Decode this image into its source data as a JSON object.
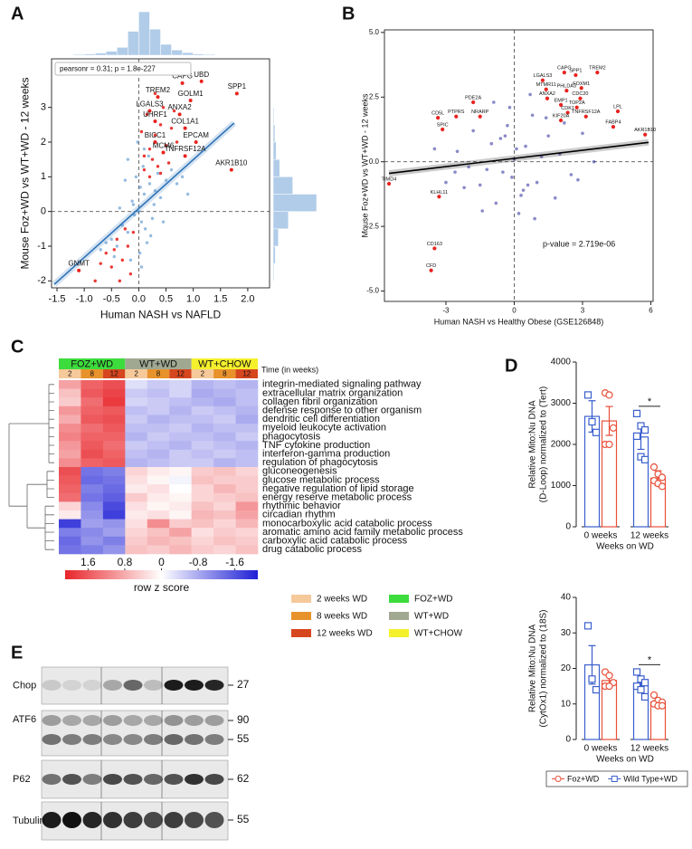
{
  "chart_data": [
    {
      "type": "scatter",
      "panel": "A",
      "xlabel": "Human NASH vs NAFLD",
      "ylabel": "Mouse Foz+WD vs WT+WD - 12 weeks",
      "annotation": "pearsonr = 0.31; p = 1.8e-227",
      "xlim": [
        -1.6,
        2.4
      ],
      "ylim": [
        -2.2,
        4.4
      ],
      "xticks": [
        -1.5,
        {
          "value": -1,
          "label": "-1.0"
        },
        -0.5,
        {
          "value": 0,
          "label": "0.0"
        },
        0.5,
        {
          "value": 1,
          "label": "1.0"
        },
        1.5,
        {
          "value": 2,
          "label": "2.0"
        }
      ],
      "yticks": [
        -2,
        -1,
        0,
        1,
        2,
        3
      ],
      "zero_lines": true,
      "series": [
        {
          "color": "#3d85c6",
          "x": [
            -0.1,
            0.05,
            0.1,
            -0.2,
            0.2,
            0.0,
            -0.05,
            0.15,
            -0.3,
            0.3,
            0.02,
            -0.12,
            0.08,
            0.25,
            -0.25,
            0.4,
            -0.4,
            0.12,
            -0.08,
            0.18,
            0.5,
            -0.5,
            0.03,
            -0.15,
            0.35,
            0.6,
            -0.6,
            0.22,
            -0.35,
            0.45,
            0.7,
            -0.2,
            0.1,
            0.05,
            -0.02,
            0.28,
            -0.45,
            0.8,
            0.9,
            -0.7
          ],
          "y": [
            0.2,
            -0.3,
            0.5,
            -0.6,
            0.8,
            0.0,
            1.0,
            -0.9,
            -0.4,
            0.6,
            -1.2,
            0.3,
            1.3,
            -0.2,
            0.9,
            0.4,
            -1.0,
            -0.5,
            -0.1,
            1.6,
            0.9,
            -0.8,
            0.7,
            -1.4,
            1.1,
            1.2,
            -0.9,
            -0.7,
            0.1,
            -0.3,
            0.8,
            1.5,
            1.8,
            -1.6,
            2.0,
            0.2,
            -1.3,
            1.0,
            0.5,
            -1.1
          ]
        },
        {
          "color": "#e8231f",
          "x": [
            0.1,
            0.2,
            0.3,
            0.25,
            0.4,
            0.5,
            0.15,
            0.35,
            0.45,
            0.6,
            0.2,
            0.3,
            0.55,
            0.7,
            0.05,
            0.4,
            0.65,
            0.1,
            -0.1,
            -0.2,
            -0.3,
            -0.4,
            -0.5,
            -0.15,
            -0.25,
            -0.6,
            -0.35,
            -0.7,
            -0.45,
            -0.8
          ],
          "y": [
            1.2,
            1.8,
            2.2,
            1.5,
            2.5,
            1.9,
            2.8,
            1.3,
            3.0,
            2.4,
            1.0,
            3.4,
            1.4,
            2.0,
            2.3,
            1.1,
            2.9,
            1.6,
            -0.6,
            -1.0,
            -1.4,
            -0.8,
            -1.6,
            -1.8,
            -0.5,
            -1.2,
            -2.0,
            -1.5,
            -1.1,
            -2.0
          ]
        }
      ],
      "labeled": {
        "color": "#e8231f",
        "labels": [
          "CAPG",
          "UBD",
          "TREM2",
          "GOLM1",
          "SPP1",
          "LGALS3",
          "ANXA2",
          "UHRF1",
          "COL1A1",
          "EPCAM",
          "BICC1",
          "MCM6",
          "TNFRSF12A",
          "AKR1B10",
          "GNMT"
        ],
        "x": [
          0.8,
          1.15,
          0.35,
          0.95,
          1.8,
          0.2,
          0.75,
          0.3,
          0.85,
          1.05,
          0.3,
          0.45,
          0.85,
          1.7,
          -1.1
        ],
        "y": [
          3.7,
          3.75,
          3.3,
          3.2,
          3.4,
          2.9,
          2.8,
          2.6,
          2.4,
          2.0,
          2.0,
          1.7,
          1.6,
          1.2,
          -1.7
        ]
      },
      "fit": {
        "color": "#2d72b8",
        "x": [
          -1.55,
          1.75
        ],
        "y": [
          -2.1,
          2.55
        ]
      },
      "x_hist": {
        "color": "#6fa3d6",
        "bins": [
          -1.6,
          -1.4,
          -1.2,
          -1.0,
          -0.8,
          -0.6,
          -0.4,
          -0.2,
          0.0,
          0.2,
          0.4,
          0.6,
          0.8,
          1.0,
          1.2,
          1.4,
          1.6,
          1.8,
          2.0,
          2.2,
          2.4
        ],
        "counts": [
          1,
          1,
          2,
          3,
          5,
          9,
          18,
          55,
          100,
          60,
          25,
          12,
          6,
          3,
          2,
          1,
          1,
          1,
          0,
          0
        ]
      },
      "y_hist": {
        "color": "#6fa3d6",
        "bins": [
          -2.0,
          -1.5,
          -1.0,
          -0.5,
          0.0,
          0.5,
          1.0,
          1.5,
          2.0,
          2.5,
          3.0,
          3.5,
          4.0
        ],
        "counts": [
          2,
          5,
          12,
          35,
          100,
          45,
          15,
          7,
          4,
          2,
          1,
          1
        ]
      }
    },
    {
      "type": "scatter",
      "panel": "B",
      "xlabel": "Human NASH vs Healthy Obese (GSE126848)",
      "ylabel": "Mouse Foz+WD vs WT+WD - 12 weeks",
      "annotation": "p-value = 2.719e-06",
      "xlim": [
        -5.7,
        6.1
      ],
      "ylim": [
        -5.4,
        5.1
      ],
      "xticks": [
        -3,
        0,
        3,
        6
      ],
      "yticks": [
        {
          "value": 5,
          "label": "5.0"
        },
        2.5,
        {
          "value": 0,
          "label": "0.0"
        },
        -2.5,
        {
          "value": -5,
          "label": "-5.0"
        }
      ],
      "zero_lines": true,
      "series": [
        {
          "color": "#2a2a9a",
          "x": [
            0,
            0.5,
            -0.5,
            1,
            -1,
            1.5,
            -1.5,
            0.3,
            -0.3,
            2,
            -2,
            0.8,
            -0.8,
            2.5,
            -2.5,
            0.2,
            -0.2,
            1.2,
            -1.2,
            3,
            -3,
            0.6,
            -0.6,
            1.8,
            -1.8,
            0.1,
            -0.1,
            2.2,
            -2.2,
            0.9,
            -0.9,
            3.5,
            -3.5,
            1.4,
            -1.4,
            0.4,
            -0.4,
            2.8,
            -2.6,
            0.7
          ],
          "y": [
            0.1,
            0.6,
            -0.4,
            -0.8,
            0.7,
            1.0,
            -0.9,
            -1.3,
            1.4,
            0.3,
            -0.2,
            1.8,
            -1.6,
            -0.5,
            0.4,
            -2.0,
            2.1,
            0.2,
            -0.3,
            1.1,
            -0.8,
            -0.9,
            0.9,
            -1.4,
            1.2,
            0.5,
            -0.6,
            1.5,
            -1.0,
            -2.2,
            2.3,
            0.0,
            0.5,
            1.7,
            -1.9,
            -1.1,
            1.0,
            -0.7,
            -0.4,
            2.6
          ]
        }
      ],
      "labeled": {
        "color": "#e8231f",
        "labels": [
          "PDE2A",
          "NRARP",
          "LGALS3",
          "CAPG",
          "SPP1",
          "TREM2",
          "MTMR11",
          "ANXA2",
          "PHLDA3",
          "FOXM1",
          "CDC20",
          "EMP1",
          "TOP2A",
          "CDK1",
          "KIF20A",
          "TNFRSF12A",
          "LPL",
          "FABP4",
          "AKR1B10",
          "PTPRS",
          "CD5L",
          "SPIC",
          "TIMD4",
          "KLHL11",
          "CD163",
          "CFD"
        ],
        "x": [
          -1.8,
          -1.5,
          1.25,
          2.2,
          2.7,
          3.65,
          1.4,
          1.45,
          2.3,
          2.95,
          2.9,
          2.05,
          2.75,
          2.35,
          2.05,
          3.15,
          4.55,
          4.35,
          5.75,
          -2.55,
          -3.35,
          -3.15,
          -5.5,
          -3.3,
          -3.5,
          -3.65
        ],
        "y": [
          2.3,
          1.75,
          3.15,
          3.45,
          3.35,
          3.45,
          2.8,
          2.45,
          2.75,
          2.85,
          2.45,
          2.2,
          2.1,
          1.9,
          1.6,
          1.75,
          1.95,
          1.35,
          1.05,
          1.75,
          1.7,
          1.25,
          -0.85,
          -1.35,
          -3.35,
          -4.2
        ]
      },
      "fit": {
        "color": "#000000",
        "x": [
          -5.5,
          5.9
        ],
        "y": [
          -0.45,
          0.75
        ]
      }
    },
    {
      "type": "heatmap",
      "panel": "C",
      "column_groups": [
        "FOZ+WD",
        "WT+WD",
        "WT+CHOW"
      ],
      "group_colors": [
        "#3ddc3d",
        "#a0a892",
        "#f4f02c"
      ],
      "time_title": "Time (in weeks)",
      "columns": [
        "2",
        "8",
        "12",
        "2",
        "8",
        "12",
        "2",
        "8",
        "12"
      ],
      "time_colors": [
        "#f6c99a",
        "#e8922c",
        "#d6461f"
      ],
      "rows": [
        "integrin-mediated signaling pathway",
        "extracellular matrix organization",
        "collagen fibril organization",
        "defense response to other organism",
        "dendritic cell differentiation",
        "myeloid leukocyte activation",
        "phagocytosis",
        "TNF cytokine production",
        "interferon-gamma production",
        "regulation of phagocytosis",
        "gluconeogenesis",
        "glucose metabolic process",
        "negative regulation of lipid storage",
        "energy reserve metabolic process",
        "rhythmic behavior",
        "circadian rhythm",
        "monocarboxylic acid catabolic process",
        "aromatic amino acid family metabolic process",
        "carboxylic acid catabolic process",
        "drug catabolic process"
      ],
      "values": [
        [
          0.9,
          1.5,
          1.7,
          -0.3,
          -0.5,
          -0.4,
          -0.7,
          -0.6,
          -0.7
        ],
        [
          0.6,
          1.6,
          1.8,
          -0.5,
          -0.6,
          -0.4,
          -0.8,
          -0.7,
          -0.6
        ],
        [
          0.5,
          1.4,
          1.9,
          -0.4,
          -0.5,
          -0.6,
          -0.7,
          -0.8,
          -0.6
        ],
        [
          1.0,
          1.5,
          1.6,
          -0.6,
          -0.5,
          -0.7,
          -0.5,
          -0.6,
          -0.7
        ],
        [
          0.8,
          1.6,
          1.7,
          -0.5,
          -0.7,
          -0.6,
          -0.6,
          -0.5,
          -0.8
        ],
        [
          1.1,
          1.4,
          1.6,
          -0.6,
          -0.6,
          -0.5,
          -0.7,
          -0.6,
          -0.6
        ],
        [
          1.2,
          1.5,
          1.5,
          -0.7,
          -0.5,
          -0.6,
          -0.6,
          -0.7,
          -0.5
        ],
        [
          1.0,
          1.6,
          1.4,
          -0.5,
          -0.6,
          -0.7,
          -0.5,
          -0.6,
          -0.7
        ],
        [
          0.9,
          1.7,
          1.5,
          -0.6,
          -0.7,
          -0.5,
          -0.6,
          -0.5,
          -0.6
        ],
        [
          1.1,
          1.5,
          1.6,
          -0.7,
          -0.6,
          -0.5,
          -0.5,
          -0.7,
          -0.6
        ],
        [
          1.7,
          -1.3,
          -1.2,
          0.4,
          0.2,
          0.1,
          0.5,
          0.6,
          0.4
        ],
        [
          1.6,
          -1.4,
          -1.3,
          0.3,
          0.1,
          -0.1,
          0.6,
          0.5,
          0.5
        ],
        [
          1.5,
          -1.2,
          -1.4,
          0.2,
          0.3,
          0.0,
          0.4,
          0.7,
          0.5
        ],
        [
          1.4,
          -1.3,
          -1.5,
          0.5,
          0.2,
          0.1,
          0.4,
          0.5,
          0.6
        ],
        [
          0.4,
          -1.1,
          -1.7,
          0.3,
          0.1,
          0.2,
          0.6,
          0.4,
          1.0
        ],
        [
          0.2,
          -1.0,
          -1.8,
          0.2,
          0.3,
          0.1,
          0.7,
          0.6,
          0.9
        ],
        [
          -1.8,
          -0.9,
          -1.0,
          0.3,
          1.1,
          0.5,
          0.6,
          0.4,
          0.7
        ],
        [
          -1.2,
          -1.1,
          -0.9,
          0.4,
          0.6,
          0.9,
          0.3,
          0.5,
          0.4
        ],
        [
          -1.4,
          -1.0,
          -1.2,
          0.5,
          0.7,
          0.6,
          0.4,
          0.6,
          0.5
        ],
        [
          -1.3,
          -1.2,
          -1.0,
          0.6,
          0.5,
          0.7,
          0.5,
          0.4,
          0.6
        ]
      ],
      "colorbar": {
        "label": "row z score",
        "clim": [
          2.1,
          -2.1
        ],
        "ticks": [
          1.6,
          0.8,
          0,
          -0.8,
          -1.6
        ],
        "high_color": "#e8252a",
        "low_color": "#1f1fd6"
      },
      "time_legend": [
        "2 weeks WD",
        "8 weeks WD",
        "12 weeks WD"
      ]
    },
    {
      "type": "bar",
      "panel": "D",
      "ylabel": [
        "Relative Mito:Nu DNA",
        "(D-Loop) normalized to (Tert)"
      ],
      "xlabel": "Weeks on WD",
      "categories": [
        "0 weeks",
        "12 weeks"
      ],
      "ylim": [
        0,
        4000
      ],
      "yticks": [
        0,
        1000,
        2000,
        3000,
        4000
      ],
      "series": [
        {
          "color": "#e8503a",
          "marker": "circle",
          "values": [
            2570,
            1180
          ],
          "errors": [
            350,
            180
          ],
          "points": [
            [
              3250,
              3200,
              2400,
              2000,
              2000
            ],
            [
              1450,
              1280,
              1200,
              1120,
              1050,
              980
            ]
          ]
        },
        {
          "color": "#3a5fcd",
          "marker": "square",
          "values": [
            2680,
            2180
          ],
          "errors": [
            380,
            300
          ],
          "points": [
            [
              3200,
              2550,
              2290
            ],
            [
              2750,
              2450,
              2350,
              2200,
              1700,
              1630
            ]
          ]
        }
      ],
      "significance": {
        "category": 1,
        "label": "*"
      }
    },
    {
      "type": "bar",
      "ylabel": [
        "Relative Mito:Nu DNA",
        "(CytOx1) normalized to (18S)"
      ],
      "xlabel": "Weeks on WD",
      "categories": [
        "0 weeks",
        "12 weeks"
      ],
      "ylim": [
        0,
        40
      ],
      "yticks": [
        0,
        10,
        20,
        30,
        40
      ],
      "series": [
        {
          "name": "Foz+WD",
          "color": "#e8503a",
          "marker": "circle",
          "values": [
            16.6,
            10.5
          ],
          "errors": [
            1.8,
            0.6
          ],
          "points": [
            [
              19,
              18,
              16,
              15,
              15
            ],
            [
              12.5,
              11,
              10.5,
              10,
              9.5,
              9.5
            ]
          ]
        },
        {
          "name": "Wild Type+WD",
          "color": "#3a5fcd",
          "marker": "square",
          "values": [
            21,
            15.5
          ],
          "errors": [
            5.4,
            1.0
          ],
          "points": [
            [
              32,
              17,
              14
            ],
            [
              19,
              17,
              16,
              15,
              14,
              12
            ]
          ]
        }
      ],
      "significance": {
        "category": 1,
        "label": "*"
      },
      "legend": "bottom"
    }
  ],
  "blot": {
    "panel": "E",
    "rows": [
      {
        "name": "Chop",
        "markers": [
          "27"
        ]
      },
      {
        "name": "ATF6",
        "markers": [
          "90",
          "55"
        ]
      },
      {
        "name": "P62",
        "markers": [
          "62"
        ]
      },
      {
        "name": "Tubulin",
        "markers": [
          "55"
        ]
      }
    ]
  }
}
